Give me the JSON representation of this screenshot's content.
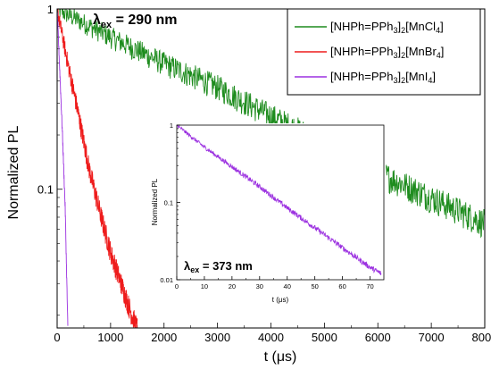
{
  "chart_data": [
    {
      "type": "line",
      "annotation": {
        "lambda": "λ",
        "sub": "ex",
        "rest": " = 290 nm"
      },
      "xlabel": {
        "pre": "t (",
        "greek": "μ",
        "post": "s)"
      },
      "ylabel": "Normalized PL",
      "xlim": [
        0,
        8000
      ],
      "ylim": [
        0.017,
        1
      ],
      "yscale": "log",
      "x_ticks": [
        "0",
        "1000",
        "2000",
        "3000",
        "4000",
        "5000",
        "6000",
        "7000",
        "8000"
      ],
      "y_ticks": [
        {
          "value": 1,
          "label": "1"
        },
        {
          "value": 0.1,
          "label": "0.1"
        }
      ],
      "legend_position": "top-right",
      "series": [
        {
          "name": "[NHPh=PPh3]2[MnCl4]",
          "label_parts": [
            "[NHPh=PPh",
            "3",
            "]",
            "2",
            "[MnCl",
            "4",
            "]"
          ],
          "color": "#1e8c1e",
          "x": [
            0,
            1000,
            2000,
            3000,
            4000,
            5000,
            6000,
            7000,
            8000
          ],
          "y": [
            1.0,
            0.7,
            0.5,
            0.37,
            0.255,
            0.18,
            0.125,
            0.09,
            0.065
          ]
        },
        {
          "name": "[NHPh=PPh3]2[MnBr4]",
          "label_parts": [
            "[NHPh=PPh",
            "3",
            "]",
            "2",
            "[MnBr",
            "4",
            "]"
          ],
          "color": "#ee1c1c",
          "x": [
            0,
            200,
            400,
            600,
            800,
            1000,
            1200,
            1400,
            1500
          ],
          "y": [
            1.0,
            0.5,
            0.26,
            0.13,
            0.075,
            0.045,
            0.03,
            0.02,
            0.017
          ]
        },
        {
          "name": "[NHPh=PPh3]2[MnI4]",
          "label_parts": [
            "[NHPh=PPh",
            "3",
            "]",
            "2",
            "[MnI",
            "4",
            "]"
          ],
          "color": "#9b30e0",
          "x": [
            0,
            50,
            100,
            150,
            200
          ],
          "y": [
            1.0,
            0.45,
            0.2,
            0.08,
            0.017
          ]
        }
      ]
    },
    {
      "type": "line",
      "annotation": {
        "lambda": "λ",
        "sub": "ex",
        "rest": " = 373 nm"
      },
      "xlabel": {
        "pre": "t (",
        "greek": "μ",
        "post": "s)"
      },
      "ylabel": "Normalized PL",
      "xlim": [
        0,
        75
      ],
      "ylim": [
        0.01,
        1
      ],
      "yscale": "log",
      "x_ticks": [
        "0",
        "10",
        "20",
        "30",
        "40",
        "50",
        "60",
        "70"
      ],
      "y_ticks": [
        {
          "value": 1,
          "label": "1"
        },
        {
          "value": 0.1,
          "label": "0.1"
        },
        {
          "value": 0.01,
          "label": "0.01"
        }
      ],
      "series": [
        {
          "color": "#9b30e0",
          "x": [
            0,
            5,
            10,
            20,
            30,
            40,
            50,
            60,
            70,
            74
          ],
          "y": [
            1.0,
            0.72,
            0.52,
            0.29,
            0.16,
            0.085,
            0.047,
            0.026,
            0.0145,
            0.012
          ]
        }
      ]
    }
  ]
}
